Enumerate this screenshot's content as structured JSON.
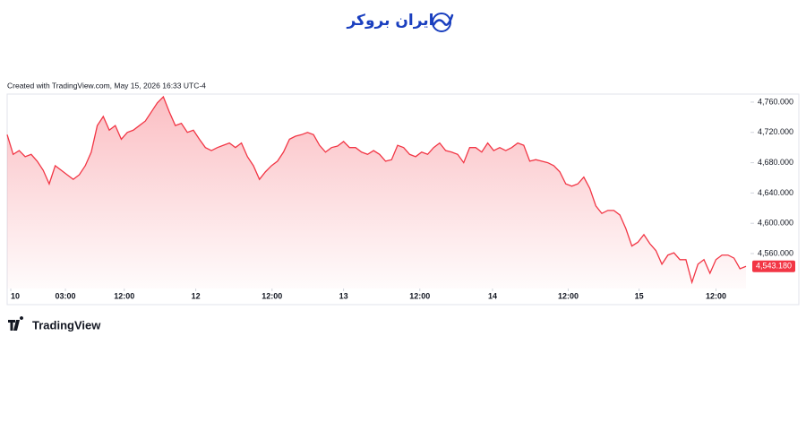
{
  "brand": "ایران بروکر",
  "chart_data": {
    "type": "area",
    "title": "Created with TradingView.com, May 15, 2026 16:33 UTC-4",
    "footer": "TradingView",
    "color": "#f23645",
    "values": [
      4717,
      4691,
      4696,
      4688,
      4691,
      4682,
      4670,
      4652,
      4676,
      4670,
      4664,
      4658,
      4664,
      4676,
      4694,
      4729,
      4741,
      4723,
      4729,
      4711,
      4720,
      4723,
      4729,
      4735,
      4747,
      4759,
      4767,
      4747,
      4729,
      4732,
      4720,
      4723,
      4711,
      4700,
      4696,
      4700,
      4703,
      4706,
      4700,
      4706,
      4688,
      4676,
      4658,
      4668,
      4676,
      4682,
      4694,
      4711,
      4715,
      4717,
      4720,
      4717,
      4703,
      4694,
      4700,
      4702,
      4708,
      4700,
      4700,
      4694,
      4691,
      4696,
      4691,
      4682,
      4684,
      4703,
      4700,
      4691,
      4688,
      4694,
      4691,
      4700,
      4706,
      4696,
      4694,
      4691,
      4680,
      4700,
      4700,
      4694,
      4706,
      4696,
      4700,
      4696,
      4700,
      4706,
      4703,
      4682,
      4684,
      4682,
      4680,
      4676,
      4668,
      4652,
      4649,
      4652,
      4661,
      4646,
      4623,
      4613,
      4617,
      4617,
      4611,
      4593,
      4570,
      4575,
      4585,
      4573,
      4564,
      4546,
      4558,
      4561,
      4552,
      4552,
      4522,
      4546,
      4552,
      4534,
      4552,
      4558,
      4558,
      4554,
      4540,
      4543.18
    ],
    "last_price_label": "4,543.180",
    "xlim": [
      0,
      123
    ],
    "xticks": [
      {
        "value": 0.6,
        "label": "10"
      },
      {
        "value": 9.7,
        "label": "03:00"
      },
      {
        "value": 19.5,
        "label": "12:00"
      },
      {
        "value": 31.4,
        "label": "12"
      },
      {
        "value": 44.1,
        "label": "12:00"
      },
      {
        "value": 56,
        "label": "13"
      },
      {
        "value": 68.7,
        "label": "12:00"
      },
      {
        "value": 80.8,
        "label": "14"
      },
      {
        "value": 93.4,
        "label": "12:00"
      },
      {
        "value": 105.2,
        "label": "15"
      },
      {
        "value": 118,
        "label": "12:00"
      }
    ],
    "ylim": [
      4513.9,
      4770.6
    ],
    "yticks": [
      {
        "value": 4760,
        "label": "4,760.000"
      },
      {
        "value": 4720,
        "label": "4,720.000"
      },
      {
        "value": 4680,
        "label": "4,680.000"
      },
      {
        "value": 4640,
        "label": "4,640.000"
      },
      {
        "value": 4600,
        "label": "4,600.000"
      },
      {
        "value": 4560,
        "label": "4,560.000"
      }
    ]
  }
}
